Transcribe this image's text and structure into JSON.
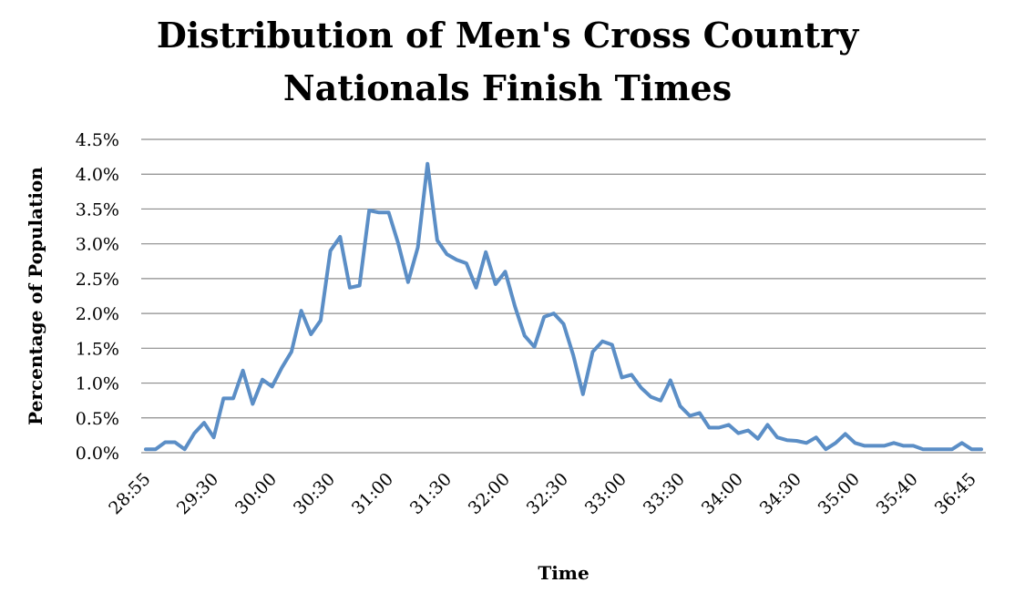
{
  "chart_data": {
    "type": "line",
    "title_lines": [
      "Distribution of Men's Cross Country",
      "Nationals Finish Times"
    ],
    "xlabel": "Time",
    "ylabel": "Percentage of Population",
    "ylim": [
      0,
      4.5
    ],
    "y_ticks": [
      "0.0%",
      "0.5%",
      "1.0%",
      "1.5%",
      "2.0%",
      "2.5%",
      "3.0%",
      "3.5%",
      "4.0%",
      "4.5%"
    ],
    "x_tick_labels": [
      {
        "label": "28:55",
        "index": 0
      },
      {
        "label": "29:30",
        "index": 7
      },
      {
        "label": "30:00",
        "index": 13
      },
      {
        "label": "30:30",
        "index": 19
      },
      {
        "label": "31:00",
        "index": 25
      },
      {
        "label": "31:30",
        "index": 31
      },
      {
        "label": "32:00",
        "index": 37
      },
      {
        "label": "32:30",
        "index": 43
      },
      {
        "label": "33:00",
        "index": 49
      },
      {
        "label": "33:30",
        "index": 55
      },
      {
        "label": "34:00",
        "index": 61
      },
      {
        "label": "34:30",
        "index": 67
      },
      {
        "label": "35:00",
        "index": 73
      },
      {
        "label": "35:40",
        "index": 79
      },
      {
        "label": "36:45",
        "index": 85
      }
    ],
    "grid": true,
    "series": [
      {
        "color": "#5b8ec6",
        "values": [
          0.05,
          0.05,
          0.15,
          0.15,
          0.05,
          0.28,
          0.43,
          0.22,
          0.78,
          0.78,
          1.18,
          0.7,
          1.05,
          0.95,
          1.22,
          1.45,
          2.04,
          1.7,
          1.9,
          2.9,
          3.1,
          2.37,
          2.4,
          3.48,
          3.45,
          3.45,
          3.0,
          2.45,
          2.95,
          4.15,
          3.05,
          2.85,
          2.77,
          2.72,
          2.37,
          2.88,
          2.42,
          2.6,
          2.1,
          1.68,
          1.52,
          1.95,
          2.0,
          1.85,
          1.4,
          0.84,
          1.45,
          1.6,
          1.55,
          1.08,
          1.12,
          0.93,
          0.8,
          0.75,
          1.04,
          0.67,
          0.53,
          0.57,
          0.36,
          0.36,
          0.4,
          0.28,
          0.32,
          0.2,
          0.4,
          0.22,
          0.18,
          0.17,
          0.14,
          0.22,
          0.05,
          0.14,
          0.27,
          0.14,
          0.1,
          0.1,
          0.1,
          0.14,
          0.1,
          0.1,
          0.05,
          0.05,
          0.05,
          0.05,
          0.14,
          0.05,
          0.05
        ]
      }
    ]
  }
}
